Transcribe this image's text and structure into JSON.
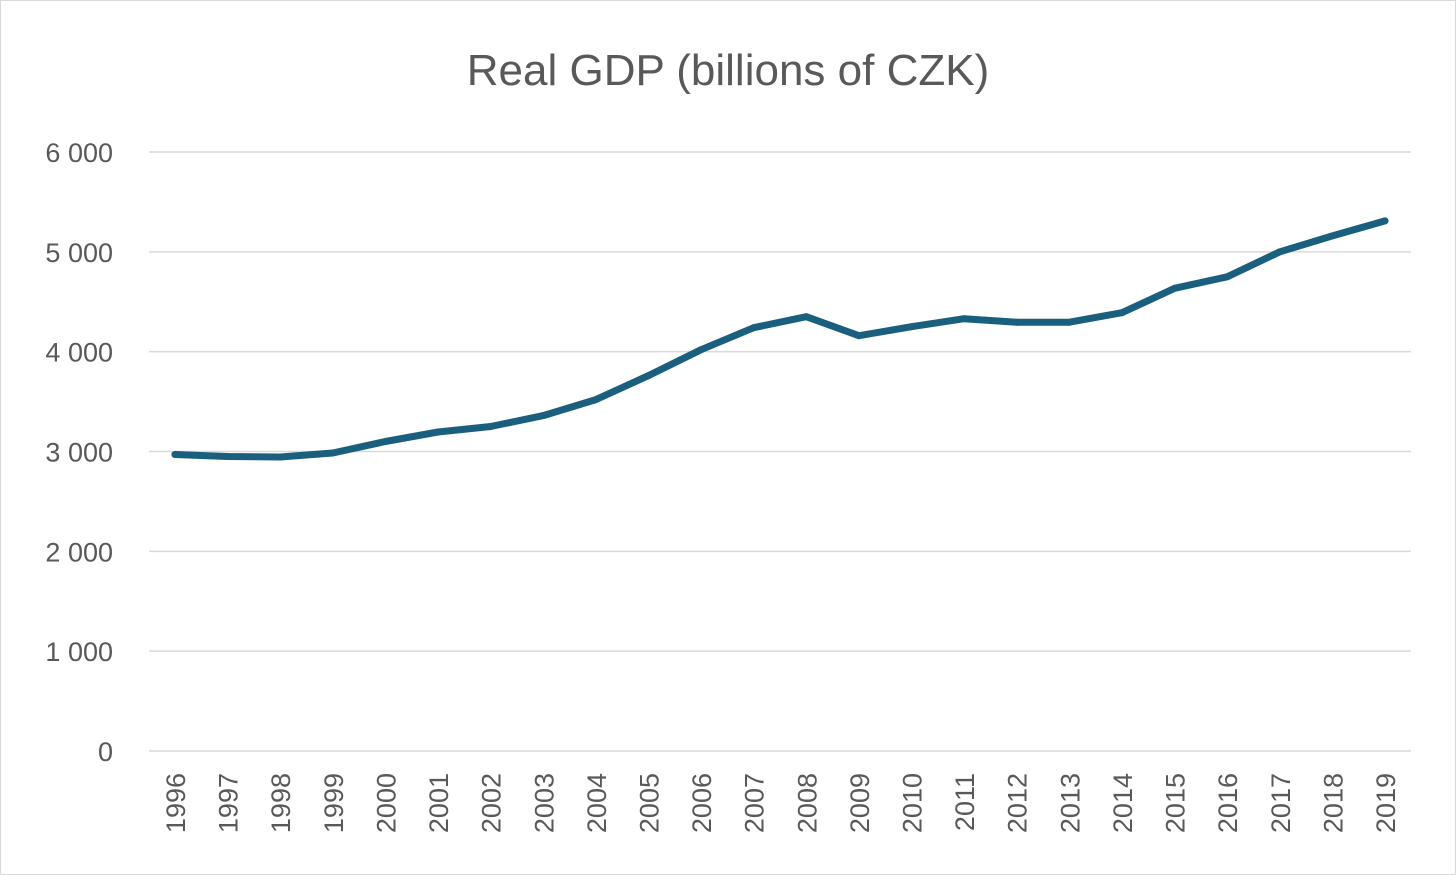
{
  "chart_data": {
    "type": "line",
    "title": "Real GDP (billions of CZK)",
    "xlabel": "",
    "ylabel": "",
    "categories": [
      "1996",
      "1997",
      "1998",
      "1999",
      "2000",
      "2001",
      "2002",
      "2003",
      "2004",
      "2005",
      "2006",
      "2007",
      "2008",
      "2009",
      "2010",
      "2011",
      "2012",
      "2013",
      "2014",
      "2015",
      "2016",
      "2017",
      "2018",
      "2019"
    ],
    "series": [
      {
        "name": "Real GDP",
        "color": "#1b5f7e",
        "values": [
          2970,
          2950,
          2945,
          2985,
          3100,
          3195,
          3250,
          3360,
          3520,
          3760,
          4020,
          4240,
          4350,
          4160,
          4250,
          4330,
          4295,
          4295,
          4390,
          4635,
          4750,
          5000,
          5160,
          5310
        ]
      }
    ],
    "ylim": [
      0,
      6000
    ],
    "yticks": [
      0,
      1000,
      2000,
      3000,
      4000,
      5000,
      6000
    ],
    "ytick_labels": [
      "0",
      "1 000",
      "2 000",
      "3 000",
      "4 000",
      "5 000",
      "6 000"
    ],
    "grid": true,
    "legend": "none"
  }
}
